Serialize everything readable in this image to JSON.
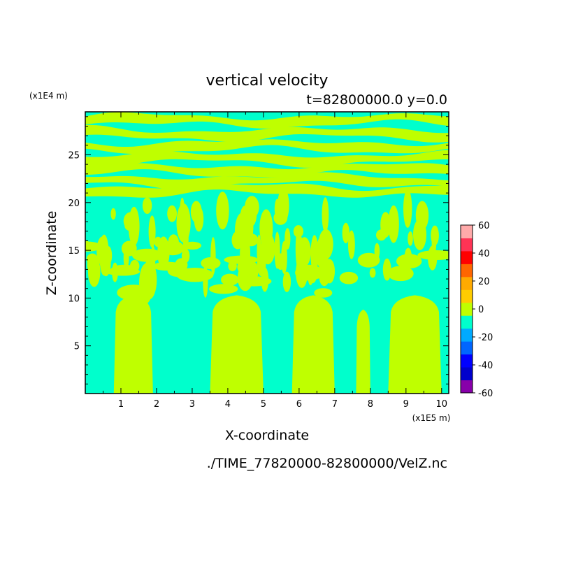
{
  "chart_data": {
    "type": "heatmap",
    "title": "vertical velocity",
    "subtitle": "t=82800000.0 y=0.0",
    "xlabel": "X-coordinate",
    "ylabel": "Z-coordinate",
    "x_scale_label": "(x1E5 m)",
    "y_scale_label": "(x1E4 m)",
    "xlim": [
      0,
      10.2
    ],
    "ylim": [
      0,
      29.5
    ],
    "x_ticks": [
      "1",
      "2",
      "3",
      "4",
      "5",
      "6",
      "7",
      "8",
      "9",
      "10"
    ],
    "y_ticks": [
      "5",
      "10",
      "15",
      "20",
      "25"
    ],
    "grid": false,
    "legend_placement": "right",
    "field_colors": {
      "negative_small": "#00ffcc",
      "positive_small": "#bfff00"
    },
    "colorbar": {
      "levels": [
        "-60",
        "-40",
        "-20",
        "0",
        "20",
        "40",
        "60"
      ],
      "colors": [
        "#8800aa",
        "#0000cc",
        "#0000ff",
        "#0066ff",
        "#00aaff",
        "#00ffcc",
        "#bfff00",
        "#ffcc00",
        "#ffaa00",
        "#ff6600",
        "#ff0000",
        "#ff3355",
        "#ffaaaa"
      ]
    },
    "updraft_columns_x": [
      [
        0.8,
        1.9
      ],
      [
        3.5,
        5.0
      ],
      [
        5.8,
        7.0
      ],
      [
        7.6,
        8.0
      ],
      [
        8.5,
        10.0
      ]
    ],
    "source_file": "./TIME_77820000-82800000/VelZ.nc"
  }
}
